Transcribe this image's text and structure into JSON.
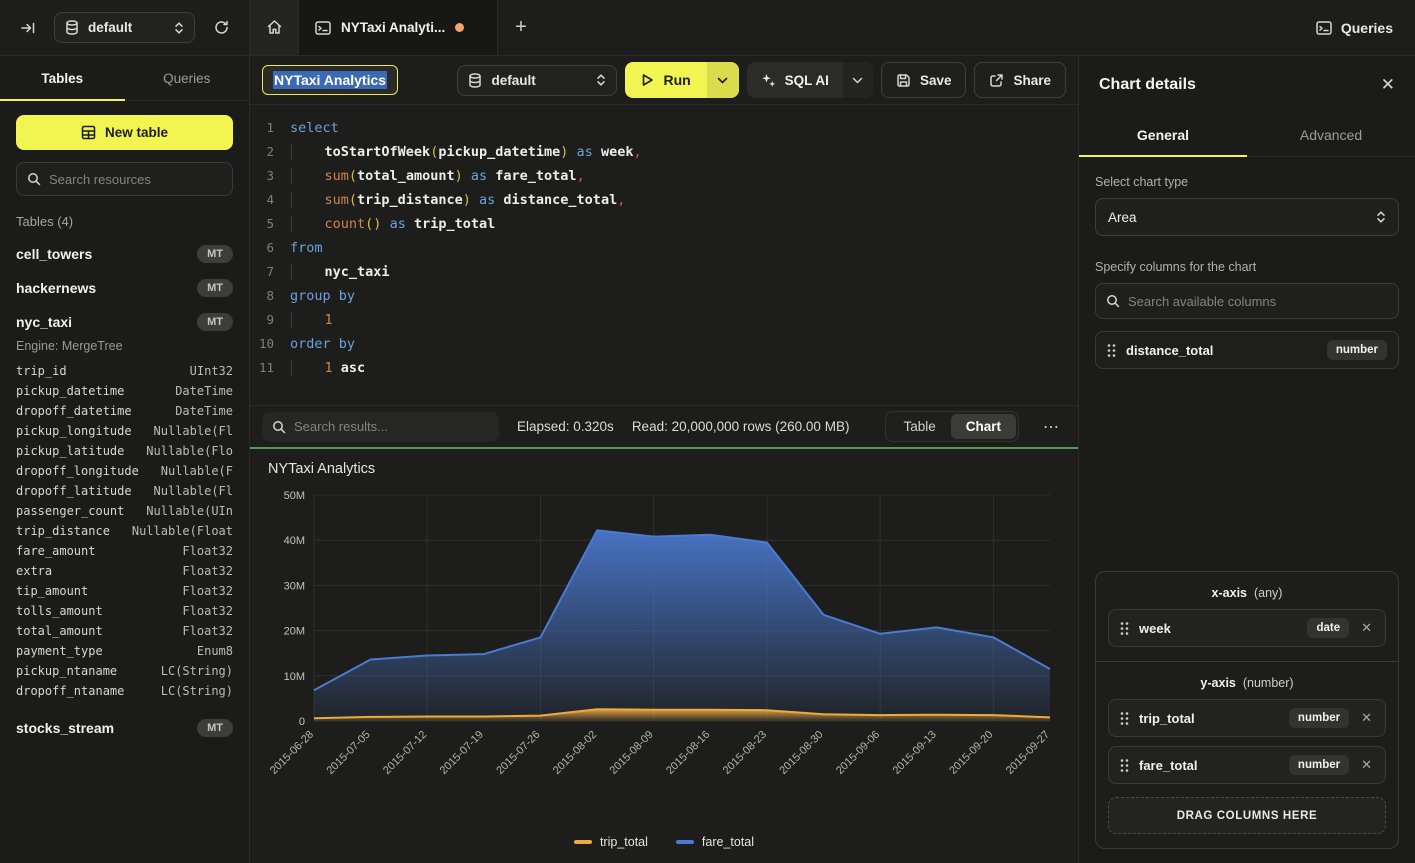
{
  "topbar": {
    "db_label": "default",
    "tab_title": "NYTaxi Analyti...",
    "queries_label": "Queries"
  },
  "sidebar": {
    "tabs": [
      "Tables",
      "Queries"
    ],
    "active_tab": "Tables",
    "new_table_label": "New table",
    "search_placeholder": "Search resources",
    "section_label": "Tables (4)",
    "tables": [
      {
        "name": "cell_towers",
        "badge": "MT",
        "expanded": false
      },
      {
        "name": "hackernews",
        "badge": "MT",
        "expanded": false
      },
      {
        "name": "nyc_taxi",
        "badge": "MT",
        "expanded": true,
        "engine": "Engine: MergeTree",
        "columns": [
          {
            "name": "trip_id",
            "type": "UInt32"
          },
          {
            "name": "pickup_datetime",
            "type": "DateTime"
          },
          {
            "name": "dropoff_datetime",
            "type": "DateTime"
          },
          {
            "name": "pickup_longitude",
            "type": "Nullable(Fl"
          },
          {
            "name": "pickup_latitude",
            "type": "Nullable(Flo"
          },
          {
            "name": "dropoff_longitude",
            "type": "Nullable(F"
          },
          {
            "name": "dropoff_latitude",
            "type": "Nullable(Fl"
          },
          {
            "name": "passenger_count",
            "type": "Nullable(UIn"
          },
          {
            "name": "trip_distance",
            "type": "Nullable(Float"
          },
          {
            "name": "fare_amount",
            "type": "Float32"
          },
          {
            "name": "extra",
            "type": "Float32"
          },
          {
            "name": "tip_amount",
            "type": "Float32"
          },
          {
            "name": "tolls_amount",
            "type": "Float32"
          },
          {
            "name": "total_amount",
            "type": "Float32"
          },
          {
            "name": "payment_type",
            "type": "Enum8"
          },
          {
            "name": "pickup_ntaname",
            "type": "LC(String)"
          },
          {
            "name": "dropoff_ntaname",
            "type": "LC(String)"
          }
        ]
      },
      {
        "name": "stocks_stream",
        "badge": "MT",
        "expanded": false
      }
    ]
  },
  "editor": {
    "query_title": "NYTaxi Analytics",
    "db_label": "default",
    "run_label": "Run",
    "sql_ai_label": "SQL AI",
    "save_label": "Save",
    "share_label": "Share",
    "sql_lines": [
      {
        "n": 1,
        "ind": false,
        "tokens": [
          [
            "kw",
            "select"
          ]
        ]
      },
      {
        "n": 2,
        "ind": true,
        "tokens": [
          [
            "pl",
            "    "
          ],
          [
            "id",
            "toStartOfWeek"
          ],
          [
            "pa",
            "("
          ],
          [
            "id",
            "pickup_datetime"
          ],
          [
            "pa",
            ")"
          ],
          [
            "pl",
            " "
          ],
          [
            "kw",
            "as"
          ],
          [
            "pl",
            " "
          ],
          [
            "id",
            "week"
          ],
          [
            "cm",
            ","
          ]
        ]
      },
      {
        "n": 3,
        "ind": true,
        "tokens": [
          [
            "pl",
            "    "
          ],
          [
            "fn",
            "sum"
          ],
          [
            "pa",
            "("
          ],
          [
            "id",
            "total_amount"
          ],
          [
            "pa",
            ")"
          ],
          [
            "pl",
            " "
          ],
          [
            "kw",
            "as"
          ],
          [
            "pl",
            " "
          ],
          [
            "id",
            "fare_total"
          ],
          [
            "cm",
            ","
          ]
        ]
      },
      {
        "n": 4,
        "ind": true,
        "tokens": [
          [
            "pl",
            "    "
          ],
          [
            "fn",
            "sum"
          ],
          [
            "pa",
            "("
          ],
          [
            "id",
            "trip_distance"
          ],
          [
            "pa",
            ")"
          ],
          [
            "pl",
            " "
          ],
          [
            "kw",
            "as"
          ],
          [
            "pl",
            " "
          ],
          [
            "id",
            "distance_total"
          ],
          [
            "cm",
            ","
          ]
        ]
      },
      {
        "n": 5,
        "ind": true,
        "tokens": [
          [
            "pl",
            "    "
          ],
          [
            "fn",
            "count"
          ],
          [
            "pa",
            "()"
          ],
          [
            "pl",
            " "
          ],
          [
            "kw",
            "as"
          ],
          [
            "pl",
            " "
          ],
          [
            "id",
            "trip_total"
          ]
        ]
      },
      {
        "n": 6,
        "ind": false,
        "tokens": [
          [
            "kw",
            "from"
          ]
        ]
      },
      {
        "n": 7,
        "ind": true,
        "tokens": [
          [
            "pl",
            "    "
          ],
          [
            "id",
            "nyc_taxi"
          ]
        ]
      },
      {
        "n": 8,
        "ind": false,
        "tokens": [
          [
            "kw",
            "group by"
          ]
        ]
      },
      {
        "n": 9,
        "ind": true,
        "tokens": [
          [
            "pl",
            "    "
          ],
          [
            "nu",
            "1"
          ]
        ]
      },
      {
        "n": 10,
        "ind": false,
        "tokens": [
          [
            "kw",
            "order by"
          ]
        ]
      },
      {
        "n": 11,
        "ind": true,
        "tokens": [
          [
            "pl",
            "    "
          ],
          [
            "nu",
            "1"
          ],
          [
            "pl",
            " "
          ],
          [
            "id",
            "asc"
          ]
        ]
      }
    ]
  },
  "results": {
    "search_placeholder": "Search results...",
    "elapsed": "Elapsed: 0.320s",
    "read": "Read: 20,000,000 rows (260.00 MB)",
    "views": [
      "Table",
      "Chart"
    ],
    "active_view": "Chart"
  },
  "chart_data": {
    "type": "area",
    "title": "NYTaxi Analytics",
    "x": [
      "2015-06-28",
      "2015-07-05",
      "2015-07-12",
      "2015-07-19",
      "2015-07-26",
      "2015-08-02",
      "2015-08-09",
      "2015-08-16",
      "2015-08-23",
      "2015-08-30",
      "2015-09-06",
      "2015-09-13",
      "2015-09-20",
      "2015-09-27"
    ],
    "series": [
      {
        "name": "trip_total",
        "color": "#f0a93b",
        "values": [
          600000,
          900000,
          1000000,
          1000000,
          1200000,
          2600000,
          2500000,
          2500000,
          2400000,
          1500000,
          1300000,
          1400000,
          1300000,
          800000
        ]
      },
      {
        "name": "fare_total",
        "color": "#4a7ad1",
        "values": [
          6800000,
          13600000,
          14500000,
          14800000,
          18500000,
          42200000,
          40800000,
          41200000,
          39500000,
          23500000,
          19300000,
          20700000,
          18500000,
          11500000
        ]
      }
    ],
    "ylim": [
      0,
      50000000
    ],
    "ytick_values": [
      0,
      10000000,
      20000000,
      30000000,
      40000000,
      50000000
    ],
    "ytick_labels": [
      "0",
      "10M",
      "20M",
      "30M",
      "40M",
      "50M"
    ],
    "legend": [
      "trip_total",
      "fare_total"
    ],
    "legend_position": "bottom",
    "grid": true
  },
  "right_panel": {
    "title": "Chart details",
    "tabs": [
      "General",
      "Advanced"
    ],
    "active_tab": "General",
    "chart_type_label": "Select chart type",
    "chart_type_value": "Area",
    "columns_label": "Specify columns for the chart",
    "search_placeholder": "Search available columns",
    "available_columns": [
      {
        "name": "distance_total",
        "type": "number"
      }
    ],
    "x_axis": {
      "label": "x-axis",
      "hint": "(any)",
      "items": [
        {
          "name": "week",
          "type": "date"
        }
      ]
    },
    "y_axis": {
      "label": "y-axis",
      "hint": "(number)",
      "items": [
        {
          "name": "trip_total",
          "type": "number"
        },
        {
          "name": "fare_total",
          "type": "number"
        }
      ]
    },
    "drop_zone_label": "DRAG COLUMNS HERE"
  }
}
